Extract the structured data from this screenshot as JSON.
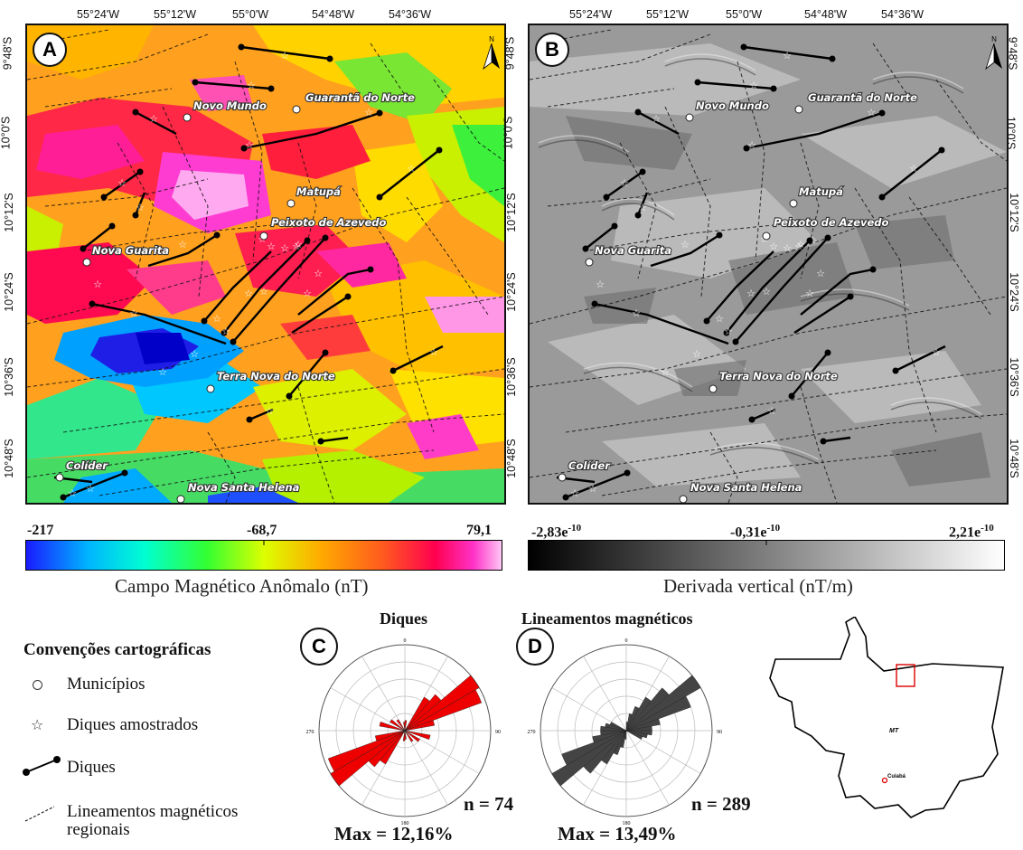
{
  "panels": {
    "a": {
      "letter": "A"
    },
    "b": {
      "letter": "B"
    },
    "c": {
      "letter": "C"
    },
    "d": {
      "letter": "D"
    }
  },
  "lon_ticks": [
    "55°24'W",
    "55°12'W",
    "55°0'W",
    "54°48'W",
    "54°36'W"
  ],
  "lat_ticks": [
    "9°48'S",
    "10°0'S",
    "10°12'S",
    "10°24'S",
    "10°36'S",
    "10°48'S"
  ],
  "towns": [
    "Novo Mundo",
    "Guarantã do Norte",
    "Matupá",
    "Peixoto de Azevedo",
    "Nova Guarita",
    "Terra Nova do Norte",
    "Colíder",
    "Nova Santa Helena"
  ],
  "colorbar_mag": {
    "min": "-217",
    "mid": "-68,7",
    "max": "79,1",
    "title": "Campo Magnético Anômalo (nT)"
  },
  "colorbar_deriv": {
    "min": "-2,83e",
    "min_exp": "-10",
    "mid": "-0,31e",
    "mid_exp": "-10",
    "max": "2,21e",
    "max_exp": "-10",
    "title": "Derivada vertical (nT/m)"
  },
  "legend": {
    "title": "Convenções cartográficas",
    "items": [
      "Municípios",
      "Diques amostrados",
      "Diques",
      "Lineamentos magnéticos regionais"
    ]
  },
  "rose_c": {
    "title": "Diques",
    "n": "n = 74",
    "max": "Max = 12,16%",
    "color": "#ee0000",
    "ticks": [
      "0",
      "90",
      "180",
      "270"
    ]
  },
  "rose_d": {
    "title": "Lineamentos magnéticos",
    "n": "n = 289",
    "max": "Max = 13,49%",
    "color": "#444444",
    "ticks": [
      "0",
      "90",
      "180",
      "270"
    ]
  },
  "inset": {
    "state": "MT",
    "capital": "Cuiabá",
    "study_area_color": "#dd0000"
  }
}
